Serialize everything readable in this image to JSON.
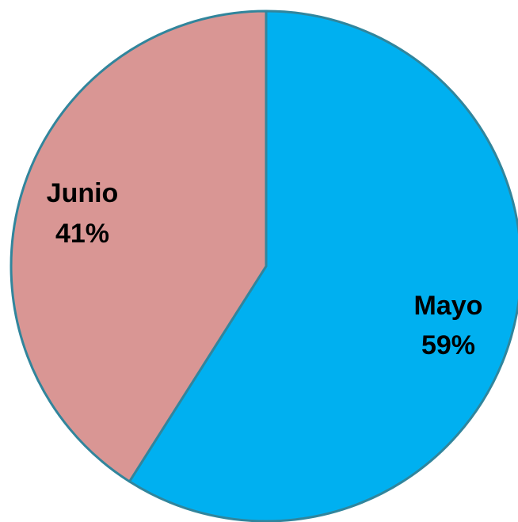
{
  "chart_data": {
    "type": "pie",
    "title": "",
    "slices": [
      {
        "label": "Mayo",
        "value": 59,
        "value_label": "59%",
        "color": "#00B0F0"
      },
      {
        "label": "Junio",
        "value": 41,
        "value_label": "41%",
        "color": "#D99694"
      }
    ],
    "start_angle": "12 o'clock",
    "direction": "clockwise",
    "outline_color": "#31859C",
    "legend": "none"
  }
}
